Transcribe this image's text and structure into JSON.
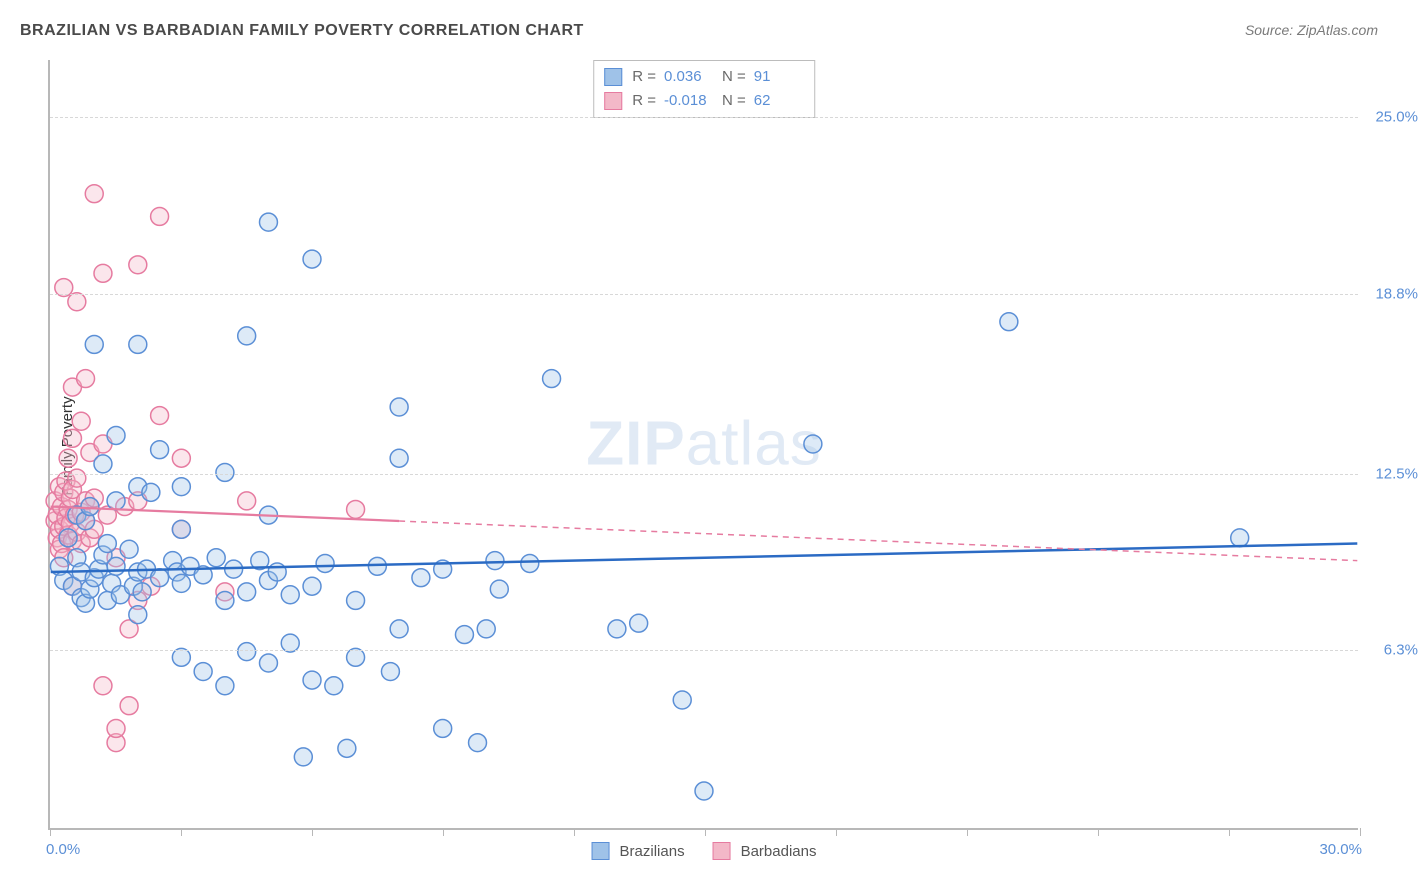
{
  "chart": {
    "type": "scatter",
    "title": "BRAZILIAN VS BARBADIAN FAMILY POVERTY CORRELATION CHART",
    "source": "Source: ZipAtlas.com",
    "watermark": {
      "bold": "ZIP",
      "light": "atlas"
    },
    "ylabel": "Family Poverty",
    "xlim": [
      0,
      30
    ],
    "ylim": [
      0,
      27
    ],
    "xtick_positions": [
      0,
      3,
      6,
      9,
      12,
      15,
      18,
      21,
      24,
      27,
      30
    ],
    "xtick_labels": {
      "start": "0.0%",
      "end": "30.0%"
    },
    "ytick_positions": [
      6.3,
      12.5,
      18.8,
      25.0
    ],
    "ytick_labels": [
      "6.3%",
      "12.5%",
      "18.8%",
      "25.0%"
    ],
    "grid_color": "#d8d8d8",
    "axis_color": "#b8b8b8",
    "background_color": "#ffffff",
    "label_color": "#5b8fd6",
    "title_color": "#4a4a4a",
    "title_fontsize": 16,
    "tick_fontsize": 15,
    "marker_radius": 9,
    "marker_stroke_width": 1.5,
    "marker_fill_opacity": 0.35
  },
  "series": [
    {
      "name": "Brazilians",
      "color_fill": "#9fc2e8",
      "color_stroke": "#5b8fd6",
      "R": "0.036",
      "N": "91",
      "trend": {
        "x1": 0,
        "y1": 9.0,
        "x2": 30,
        "y2": 10.0,
        "color": "#2b6bc4",
        "width": 2.5,
        "solid_until_x": 30
      },
      "pts": [
        [
          0.2,
          9.2
        ],
        [
          0.3,
          8.7
        ],
        [
          0.4,
          10.2
        ],
        [
          0.5,
          8.5
        ],
        [
          0.6,
          9.5
        ],
        [
          0.6,
          11.0
        ],
        [
          0.7,
          8.1
        ],
        [
          0.7,
          9.0
        ],
        [
          0.8,
          7.9
        ],
        [
          0.8,
          10.8
        ],
        [
          0.9,
          8.4
        ],
        [
          0.9,
          11.3
        ],
        [
          1.0,
          8.8
        ],
        [
          1.0,
          17.0
        ],
        [
          1.1,
          9.1
        ],
        [
          1.2,
          9.6
        ],
        [
          1.2,
          12.8
        ],
        [
          1.3,
          8.0
        ],
        [
          1.3,
          10.0
        ],
        [
          1.4,
          8.6
        ],
        [
          1.5,
          9.2
        ],
        [
          1.5,
          11.5
        ],
        [
          1.5,
          13.8
        ],
        [
          1.6,
          8.2
        ],
        [
          1.8,
          9.8
        ],
        [
          1.9,
          8.5
        ],
        [
          2.0,
          7.5
        ],
        [
          2.0,
          9.0
        ],
        [
          2.0,
          12.0
        ],
        [
          2.0,
          17.0
        ],
        [
          2.1,
          8.3
        ],
        [
          2.2,
          9.1
        ],
        [
          2.3,
          11.8
        ],
        [
          2.5,
          8.8
        ],
        [
          2.5,
          13.3
        ],
        [
          2.8,
          9.4
        ],
        [
          2.9,
          9.0
        ],
        [
          3.0,
          6.0
        ],
        [
          3.0,
          8.6
        ],
        [
          3.0,
          10.5
        ],
        [
          3.0,
          12.0
        ],
        [
          3.2,
          9.2
        ],
        [
          3.5,
          5.5
        ],
        [
          3.5,
          8.9
        ],
        [
          3.8,
          9.5
        ],
        [
          4.0,
          5.0
        ],
        [
          4.0,
          8.0
        ],
        [
          4.0,
          12.5
        ],
        [
          4.2,
          9.1
        ],
        [
          4.5,
          6.2
        ],
        [
          4.5,
          8.3
        ],
        [
          4.5,
          17.3
        ],
        [
          4.8,
          9.4
        ],
        [
          5.0,
          5.8
        ],
        [
          5.0,
          8.7
        ],
        [
          5.0,
          11.0
        ],
        [
          5.0,
          21.3
        ],
        [
          5.2,
          9.0
        ],
        [
          5.5,
          6.5
        ],
        [
          5.5,
          8.2
        ],
        [
          5.8,
          2.5
        ],
        [
          6.0,
          5.2
        ],
        [
          6.0,
          8.5
        ],
        [
          6.0,
          20.0
        ],
        [
          6.3,
          9.3
        ],
        [
          6.5,
          5.0
        ],
        [
          6.8,
          2.8
        ],
        [
          7.0,
          6.0
        ],
        [
          7.0,
          8.0
        ],
        [
          7.5,
          9.2
        ],
        [
          7.8,
          5.5
        ],
        [
          8.0,
          7.0
        ],
        [
          8.0,
          13.0
        ],
        [
          8.0,
          14.8
        ],
        [
          8.5,
          8.8
        ],
        [
          9.0,
          3.5
        ],
        [
          9.0,
          9.1
        ],
        [
          9.5,
          6.8
        ],
        [
          9.8,
          3.0
        ],
        [
          10.0,
          7.0
        ],
        [
          10.2,
          9.4
        ],
        [
          10.3,
          8.4
        ],
        [
          11.0,
          9.3
        ],
        [
          11.5,
          15.8
        ],
        [
          13.0,
          7.0
        ],
        [
          13.5,
          7.2
        ],
        [
          14.5,
          4.5
        ],
        [
          15.0,
          1.3
        ],
        [
          17.5,
          13.5
        ],
        [
          22.0,
          17.8
        ],
        [
          27.3,
          10.2
        ]
      ]
    },
    {
      "name": "Barbadians",
      "color_fill": "#f3b8c8",
      "color_stroke": "#e67ba0",
      "R": "-0.018",
      "N": "62",
      "trend": {
        "x1": 0,
        "y1": 11.3,
        "x2": 30,
        "y2": 9.4,
        "color": "#e67ba0",
        "width": 2.2,
        "solid_until_x": 8
      },
      "pts": [
        [
          0.1,
          10.8
        ],
        [
          0.1,
          11.5
        ],
        [
          0.15,
          11.0
        ],
        [
          0.15,
          10.2
        ],
        [
          0.2,
          9.8
        ],
        [
          0.2,
          12.0
        ],
        [
          0.2,
          10.5
        ],
        [
          0.25,
          11.3
        ],
        [
          0.25,
          10.0
        ],
        [
          0.3,
          10.6
        ],
        [
          0.3,
          11.8
        ],
        [
          0.3,
          9.5
        ],
        [
          0.3,
          19.0
        ],
        [
          0.35,
          10.9
        ],
        [
          0.35,
          12.2
        ],
        [
          0.4,
          11.2
        ],
        [
          0.4,
          10.3
        ],
        [
          0.4,
          13.0
        ],
        [
          0.45,
          10.7
        ],
        [
          0.45,
          11.6
        ],
        [
          0.5,
          10.1
        ],
        [
          0.5,
          11.9
        ],
        [
          0.5,
          13.7
        ],
        [
          0.5,
          15.5
        ],
        [
          0.5,
          8.5
        ],
        [
          0.55,
          11.0
        ],
        [
          0.6,
          10.4
        ],
        [
          0.6,
          12.3
        ],
        [
          0.6,
          18.5
        ],
        [
          0.7,
          11.1
        ],
        [
          0.7,
          10.0
        ],
        [
          0.7,
          14.3
        ],
        [
          0.8,
          11.5
        ],
        [
          0.8,
          10.8
        ],
        [
          0.8,
          15.8
        ],
        [
          0.9,
          11.3
        ],
        [
          0.9,
          10.2
        ],
        [
          0.9,
          13.2
        ],
        [
          1.0,
          11.6
        ],
        [
          1.0,
          10.5
        ],
        [
          1.0,
          22.3
        ],
        [
          1.2,
          13.5
        ],
        [
          1.2,
          19.5
        ],
        [
          1.2,
          5.0
        ],
        [
          1.3,
          11.0
        ],
        [
          1.5,
          9.5
        ],
        [
          1.5,
          3.0
        ],
        [
          1.5,
          3.5
        ],
        [
          1.7,
          11.3
        ],
        [
          1.8,
          7.0
        ],
        [
          1.8,
          4.3
        ],
        [
          2.0,
          11.5
        ],
        [
          2.0,
          8.0
        ],
        [
          2.0,
          19.8
        ],
        [
          2.3,
          8.5
        ],
        [
          2.5,
          14.5
        ],
        [
          2.5,
          21.5
        ],
        [
          3.0,
          10.5
        ],
        [
          3.0,
          13.0
        ],
        [
          4.0,
          8.3
        ],
        [
          4.5,
          11.5
        ],
        [
          7.0,
          11.2
        ]
      ]
    }
  ],
  "legend_top": {
    "R_label": "R =",
    "N_label": "N ="
  },
  "legend_bottom": {
    "items": [
      "Brazilians",
      "Barbadians"
    ]
  }
}
